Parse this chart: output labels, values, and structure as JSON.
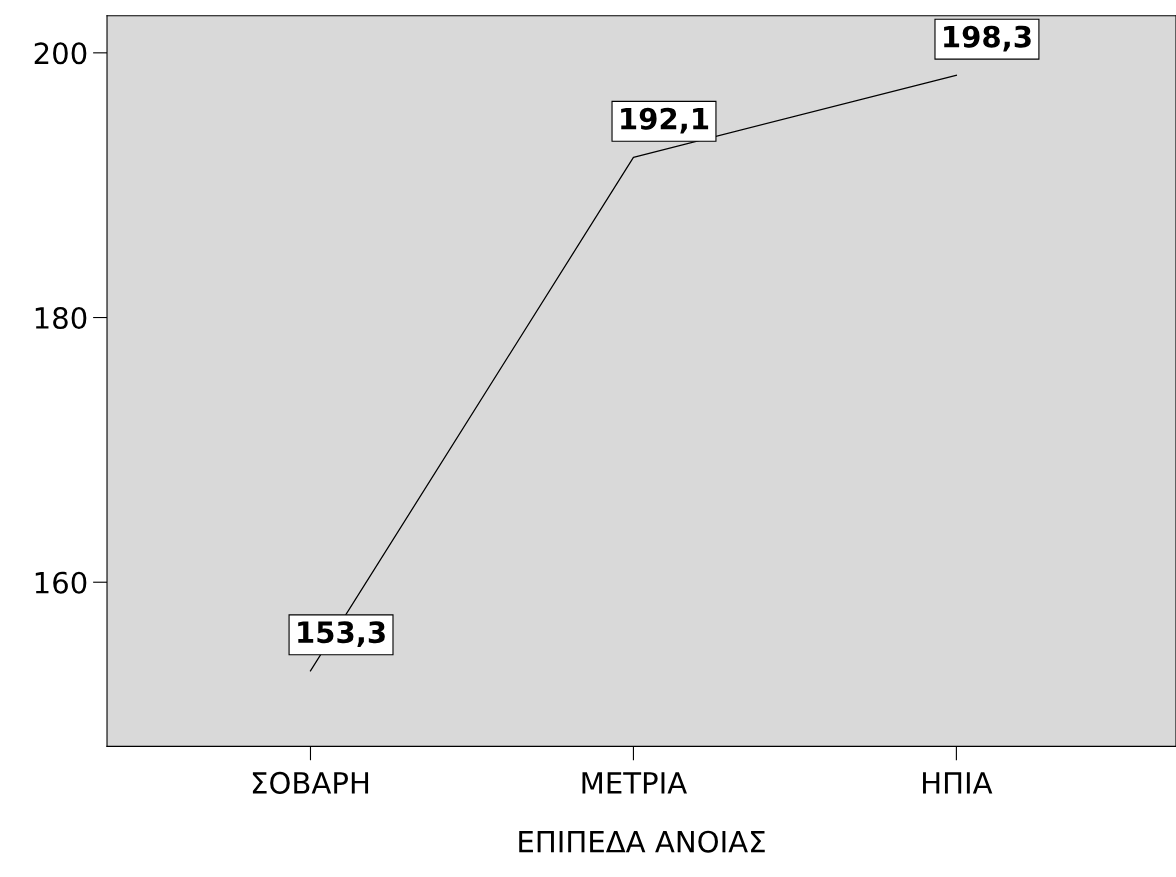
{
  "chart_data": {
    "type": "line",
    "xlabel": "ΕΠΙΠΕΔΑ ΑΝΟΙΑΣ",
    "categories": [
      "ΣΟΒΑΡΗ",
      "ΜΕΤΡΙΑ",
      "ΗΠΙΑ"
    ],
    "series": [
      {
        "color": "#000000",
        "values": [
          153.3,
          192.1,
          198.3
        ],
        "value_labels": [
          "153,3",
          "192,1",
          "198,3"
        ]
      }
    ],
    "ylim": [
      147.6,
      202.8
    ],
    "yticks": [
      160,
      180,
      200
    ],
    "grid": false,
    "line_style": "solid"
  }
}
